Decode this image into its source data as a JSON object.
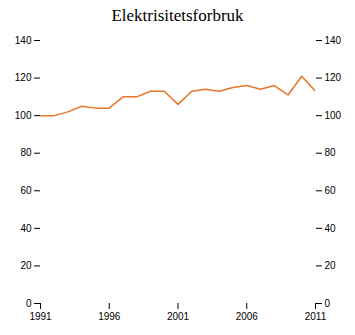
{
  "chart_data": {
    "type": "line",
    "title": "Elektrisitetsforbruk",
    "x": [
      1991,
      1992,
      1993,
      1994,
      1995,
      1996,
      1997,
      1998,
      1999,
      2000,
      2001,
      2002,
      2003,
      2004,
      2005,
      2006,
      2007,
      2008,
      2009,
      2010,
      2011
    ],
    "values": [
      100,
      100,
      102,
      105,
      104,
      104,
      110,
      110,
      113,
      113,
      106,
      113,
      114,
      113,
      115,
      116,
      114,
      116,
      111,
      121,
      113
    ],
    "color": "#E8762B",
    "xlim": [
      1991,
      2011
    ],
    "xticks": [
      1991,
      1996,
      2001,
      2006,
      2011
    ],
    "ylim": [
      0,
      140
    ],
    "yticks": [
      0,
      20,
      40,
      60,
      80,
      100,
      120,
      140
    ],
    "y2lim": [
      0,
      140
    ],
    "y2ticks": [
      0,
      20,
      40,
      60,
      80,
      100,
      120,
      140
    ],
    "grid": false
  }
}
